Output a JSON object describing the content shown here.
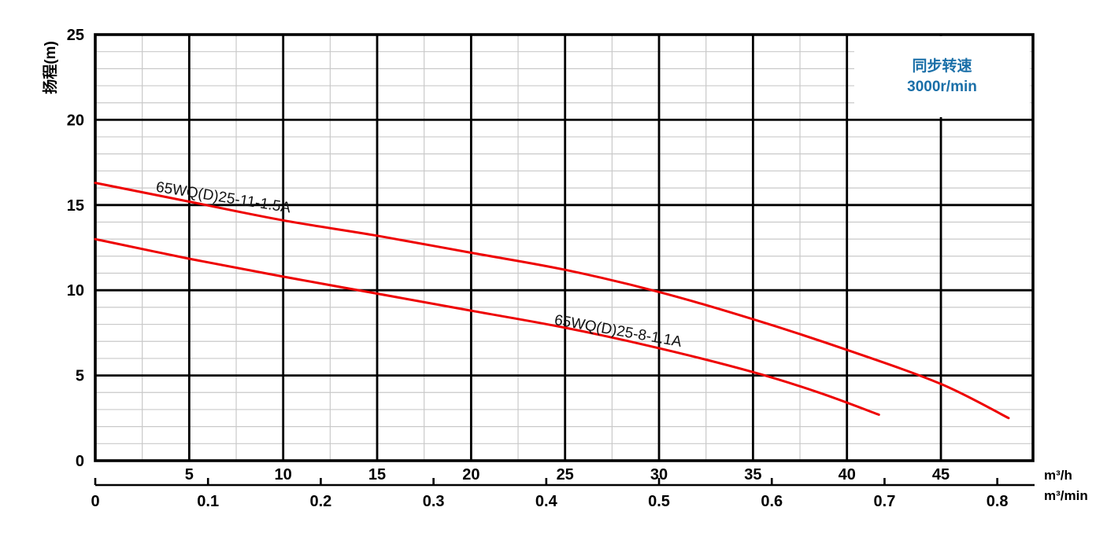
{
  "chart_data": {
    "type": "line",
    "title": "",
    "ylabel": "扬程(m)",
    "ylim": [
      0,
      25
    ],
    "y_ticks": [
      0,
      5,
      10,
      15,
      20,
      25
    ],
    "y_minor_step": 1,
    "x_primary": {
      "unit": "m³/h",
      "ticks": [
        5,
        10,
        15,
        20,
        25,
        30,
        35,
        40,
        45
      ],
      "lim": [
        0,
        49.9
      ],
      "minor_step": 2.5,
      "minor_max": 40
    },
    "x_secondary": {
      "unit": "m³/min",
      "tick_labels": [
        "0",
        "0.1",
        "0.2",
        "0.3",
        "0.4",
        "0.5",
        "0.6",
        "0.7",
        "0.8"
      ],
      "tick_values_in_primary_units": [
        0,
        6,
        12,
        18,
        24,
        30,
        36,
        42,
        48
      ]
    },
    "grid": {
      "major_color": "#000000",
      "minor_color": "#c9c9c9",
      "grid_on": true
    },
    "curve_color": "#ee0000",
    "series": [
      {
        "name": "65WQ(D)25-11-1.5A",
        "points": [
          [
            0,
            16.3
          ],
          [
            5,
            15.2
          ],
          [
            10,
            14.1
          ],
          [
            15,
            13.2
          ],
          [
            20,
            12.2
          ],
          [
            25,
            11.2
          ],
          [
            30,
            9.9
          ],
          [
            35,
            8.3
          ],
          [
            40,
            6.5
          ],
          [
            45,
            4.5
          ],
          [
            48.6,
            2.5
          ]
        ],
        "label_at": {
          "x": 3.2,
          "y": 15.8,
          "angle": 9
        }
      },
      {
        "name": "65WQ(D)25-8-1.1A",
        "points": [
          [
            0,
            13.0
          ],
          [
            5,
            11.85
          ],
          [
            10,
            10.8
          ],
          [
            15,
            9.8
          ],
          [
            20,
            8.8
          ],
          [
            25,
            7.8
          ],
          [
            30,
            6.6
          ],
          [
            35,
            5.2
          ],
          [
            38.5,
            4.0
          ],
          [
            41.7,
            2.7
          ]
        ],
        "label_at": {
          "x": 24.4,
          "y": 8.0,
          "angle": 10
        }
      }
    ],
    "legend": {
      "line1": "同步转速",
      "line2": "3000r/min",
      "color": "#1a6fa8",
      "position": "top-right"
    }
  }
}
